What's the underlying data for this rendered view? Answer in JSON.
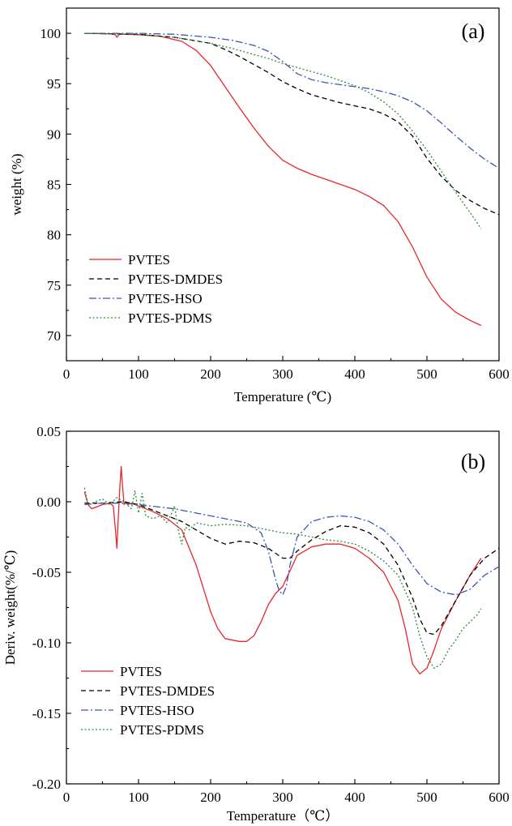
{
  "chart_data": [
    {
      "type": "line",
      "panel_label": "(a)",
      "xlabel": "Temperature (℃)",
      "ylabel": "weight (%)",
      "xlim": [
        0,
        600
      ],
      "ylim": [
        67.5,
        102.5
      ],
      "xticks": [
        0,
        100,
        200,
        300,
        400,
        500,
        600
      ],
      "yticks": [
        70,
        75,
        80,
        85,
        90,
        95,
        100
      ],
      "legend": "bottom-left",
      "series": [
        {
          "name": "PVTES",
          "color": "#e8262b",
          "dash": "solid",
          "x": [
            25,
            60,
            68,
            70,
            72,
            74,
            76,
            80,
            100,
            130,
            160,
            180,
            200,
            220,
            240,
            260,
            280,
            300,
            320,
            340,
            360,
            380,
            400,
            420,
            440,
            460,
            480,
            500,
            520,
            540,
            560,
            575
          ],
          "y": [
            100,
            99.95,
            99.85,
            99.6,
            99.8,
            99.95,
            99.9,
            99.9,
            99.85,
            99.7,
            99.2,
            98.3,
            96.8,
            94.7,
            92.6,
            90.6,
            88.8,
            87.4,
            86.6,
            86.0,
            85.5,
            85.0,
            84.5,
            83.8,
            82.9,
            81.3,
            78.8,
            75.8,
            73.6,
            72.3,
            71.5,
            71.0
          ]
        },
        {
          "name": "PVTES-DMDES",
          "color": "#000000",
          "dash": "dashed",
          "x": [
            25,
            100,
            150,
            200,
            220,
            240,
            260,
            280,
            300,
            320,
            340,
            360,
            380,
            400,
            420,
            440,
            460,
            480,
            500,
            520,
            540,
            560,
            580,
            600
          ],
          "y": [
            100,
            99.9,
            99.6,
            99.0,
            98.4,
            97.7,
            96.9,
            96.1,
            95.2,
            94.5,
            93.9,
            93.5,
            93.1,
            92.8,
            92.5,
            92.0,
            91.2,
            89.8,
            87.6,
            85.8,
            84.4,
            83.4,
            82.6,
            82.0
          ]
        },
        {
          "name": "PVTES-HSO",
          "color": "#3d55b3",
          "dash": "dashdot",
          "x": [
            25,
            100,
            150,
            200,
            230,
            260,
            280,
            300,
            320,
            340,
            360,
            380,
            400,
            420,
            440,
            460,
            480,
            500,
            520,
            540,
            560,
            580,
            600
          ],
          "y": [
            100,
            100,
            99.9,
            99.6,
            99.3,
            98.8,
            98.2,
            97.2,
            96.0,
            95.4,
            95.1,
            94.9,
            94.7,
            94.5,
            94.2,
            93.8,
            93.2,
            92.3,
            91.1,
            89.8,
            88.6,
            87.5,
            86.6
          ]
        },
        {
          "name": "PVTES-PDMS",
          "color": "#2e8b3a",
          "dash": "dotted",
          "x": [
            25,
            100,
            150,
            200,
            230,
            260,
            280,
            300,
            320,
            340,
            360,
            380,
            400,
            420,
            440,
            460,
            480,
            500,
            520,
            540,
            560,
            575
          ],
          "y": [
            100,
            99.9,
            99.6,
            99.0,
            98.5,
            97.9,
            97.5,
            97.0,
            96.6,
            96.2,
            95.8,
            95.3,
            94.8,
            94.1,
            93.2,
            92.0,
            90.3,
            88.4,
            86.3,
            84.2,
            82.2,
            80.6
          ]
        }
      ]
    },
    {
      "type": "line",
      "panel_label": "(b)",
      "xlabel": "Temperature（℃）",
      "ylabel": "Deriv. weight(%/℃)",
      "xlim": [
        0,
        600
      ],
      "ylim": [
        -0.2,
        0.05
      ],
      "xticks": [
        0,
        100,
        200,
        300,
        400,
        500,
        600
      ],
      "yticks": [
        0.05,
        0.0,
        -0.05,
        -0.1,
        -0.15,
        -0.2
      ],
      "ytick_labels": [
        "0.05",
        "0.00",
        "-0.05",
        "-0.10",
        "-0.15",
        "-0.20"
      ],
      "legend": "bottom-left",
      "series": [
        {
          "name": "PVTES",
          "color": "#e8262b",
          "dash": "solid",
          "x": [
            25,
            30,
            35,
            40,
            50,
            60,
            65,
            68,
            70,
            72,
            74,
            76,
            78,
            80,
            82,
            85,
            90,
            100,
            120,
            140,
            160,
            180,
            200,
            210,
            220,
            240,
            250,
            260,
            270,
            280,
            290,
            300,
            320,
            340,
            360,
            380,
            400,
            420,
            440,
            460,
            470,
            480,
            490,
            500,
            510,
            520,
            540,
            560,
            575
          ],
          "y": [
            0.007,
            -0.002,
            -0.005,
            -0.004,
            -0.002,
            -0.001,
            -0.003,
            -0.02,
            -0.033,
            -0.01,
            0.01,
            0.025,
            0.01,
            -0.002,
            0.0,
            -0.002,
            -0.001,
            -0.003,
            -0.007,
            -0.012,
            -0.02,
            -0.045,
            -0.078,
            -0.09,
            -0.097,
            -0.099,
            -0.099,
            -0.095,
            -0.085,
            -0.073,
            -0.065,
            -0.06,
            -0.038,
            -0.032,
            -0.03,
            -0.03,
            -0.033,
            -0.04,
            -0.05,
            -0.07,
            -0.09,
            -0.115,
            -0.122,
            -0.118,
            -0.105,
            -0.09,
            -0.07,
            -0.052,
            -0.04
          ]
        },
        {
          "name": "PVTES-DMDES",
          "color": "#000000",
          "dash": "dashed",
          "x": [
            25,
            50,
            80,
            100,
            120,
            140,
            160,
            180,
            200,
            220,
            240,
            260,
            280,
            300,
            310,
            320,
            340,
            360,
            380,
            400,
            420,
            440,
            460,
            480,
            490,
            500,
            510,
            520,
            540,
            560,
            580,
            600
          ],
          "y": [
            -0.001,
            -0.001,
            0.0,
            -0.002,
            -0.006,
            -0.01,
            -0.014,
            -0.02,
            -0.026,
            -0.03,
            -0.028,
            -0.029,
            -0.033,
            -0.04,
            -0.04,
            -0.035,
            -0.027,
            -0.021,
            -0.017,
            -0.018,
            -0.022,
            -0.03,
            -0.045,
            -0.068,
            -0.083,
            -0.093,
            -0.094,
            -0.088,
            -0.07,
            -0.052,
            -0.04,
            -0.033
          ]
        },
        {
          "name": "PVTES-HSO",
          "color": "#3d55b3",
          "dash": "dashdot",
          "x": [
            25,
            50,
            80,
            100,
            150,
            200,
            250,
            270,
            280,
            290,
            295,
            300,
            305,
            310,
            320,
            340,
            360,
            380,
            400,
            420,
            440,
            460,
            480,
            500,
            520,
            540,
            560,
            580,
            600
          ],
          "y": [
            -0.002,
            -0.001,
            -0.001,
            -0.002,
            -0.005,
            -0.01,
            -0.015,
            -0.022,
            -0.035,
            -0.055,
            -0.063,
            -0.066,
            -0.06,
            -0.045,
            -0.025,
            -0.014,
            -0.011,
            -0.01,
            -0.011,
            -0.014,
            -0.02,
            -0.03,
            -0.045,
            -0.058,
            -0.064,
            -0.066,
            -0.062,
            -0.052,
            -0.046
          ]
        },
        {
          "name": "PVTES-PDMS",
          "color": "#2e8b3a",
          "dash": "dotted",
          "x": [
            25,
            30,
            40,
            50,
            60,
            70,
            80,
            90,
            95,
            100,
            105,
            110,
            120,
            130,
            140,
            150,
            155,
            160,
            165,
            170,
            180,
            200,
            220,
            250,
            280,
            300,
            320,
            340,
            360,
            380,
            400,
            420,
            440,
            460,
            480,
            490,
            500,
            510,
            520,
            530,
            540,
            550,
            560,
            570,
            575
          ],
          "y": [
            0.01,
            -0.002,
            0.0,
            0.002,
            -0.002,
            0.003,
            0.0,
            -0.005,
            0.008,
            -0.008,
            0.006,
            -0.01,
            -0.012,
            -0.01,
            -0.015,
            -0.003,
            -0.02,
            -0.03,
            -0.018,
            -0.02,
            -0.015,
            -0.017,
            -0.016,
            -0.017,
            -0.02,
            -0.022,
            -0.023,
            -0.025,
            -0.027,
            -0.028,
            -0.03,
            -0.035,
            -0.042,
            -0.052,
            -0.075,
            -0.095,
            -0.11,
            -0.118,
            -0.115,
            -0.105,
            -0.098,
            -0.09,
            -0.085,
            -0.08,
            -0.076
          ]
        }
      ]
    }
  ]
}
